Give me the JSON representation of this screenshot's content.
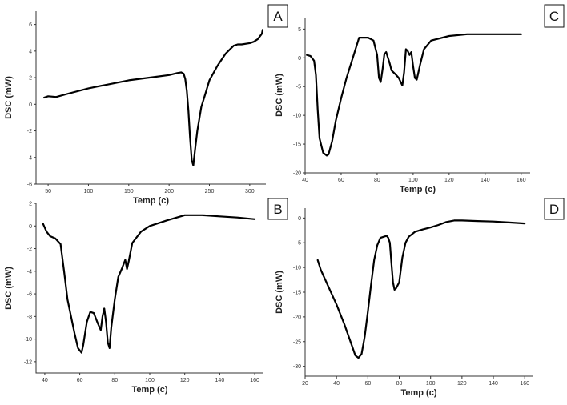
{
  "chart_data": [
    {
      "panel_label": "A",
      "type": "line",
      "xlabel": "Temp (c)",
      "ylabel": "DSC (mW)",
      "xlim": [
        35,
        320
      ],
      "ylim": [
        -6,
        7
      ],
      "xticks": [
        50,
        100,
        150,
        200,
        250,
        300
      ],
      "yticks": [
        -6,
        -4,
        -2,
        0,
        2,
        4,
        6
      ],
      "grid": false,
      "series": [
        {
          "color": "#000000",
          "x": [
            45,
            50,
            60,
            75,
            100,
            125,
            150,
            175,
            200,
            210,
            215,
            218,
            220,
            222,
            224,
            226,
            228,
            230,
            232,
            235,
            240,
            245,
            250,
            260,
            270,
            280,
            285,
            290,
            300,
            305,
            310,
            315,
            316
          ],
          "y": [
            0.5,
            0.6,
            0.55,
            0.8,
            1.2,
            1.5,
            1.8,
            2.0,
            2.2,
            2.35,
            2.4,
            2.3,
            1.9,
            1.0,
            -0.5,
            -2.5,
            -4.2,
            -4.6,
            -3.5,
            -2.0,
            -0.2,
            0.8,
            1.8,
            2.9,
            3.8,
            4.4,
            4.5,
            4.5,
            4.6,
            4.7,
            4.9,
            5.3,
            5.6
          ]
        }
      ]
    },
    {
      "panel_label": "B",
      "type": "line",
      "xlabel": "Temp (c)",
      "ylabel": "DSC (mW)",
      "xlim": [
        35,
        165
      ],
      "ylim": [
        -13,
        2
      ],
      "xticks": [
        40,
        60,
        80,
        100,
        120,
        140,
        160
      ],
      "yticks": [
        -12,
        -10,
        -8,
        -6,
        -4,
        -2,
        0,
        2
      ],
      "grid": false,
      "series": [
        {
          "color": "#000000",
          "x": [
            39,
            41,
            43,
            46,
            49,
            51,
            53,
            55,
            57,
            59,
            61,
            62,
            64,
            66,
            68,
            70,
            72,
            73,
            74,
            75,
            76,
            77,
            78,
            80,
            82,
            84,
            86,
            87,
            88,
            90,
            95,
            100,
            110,
            120,
            130,
            140,
            150,
            160
          ],
          "y": [
            0.2,
            -0.5,
            -0.9,
            -1.1,
            -1.6,
            -4.0,
            -6.5,
            -8.0,
            -9.5,
            -10.8,
            -11.2,
            -10.5,
            -8.5,
            -7.6,
            -7.7,
            -8.5,
            -9.2,
            -8.0,
            -7.3,
            -8.5,
            -10.3,
            -10.8,
            -9.0,
            -6.5,
            -4.5,
            -3.8,
            -3.0,
            -3.8,
            -3.1,
            -1.5,
            -0.5,
            0.0,
            0.5,
            0.95,
            0.95,
            0.85,
            0.75,
            0.6
          ]
        }
      ]
    },
    {
      "panel_label": "C",
      "type": "line",
      "xlabel": "Temp (c)",
      "ylabel": "DSC (mW)",
      "xlim": [
        40,
        165
      ],
      "ylim": [
        -20,
        7
      ],
      "xticks": [
        40,
        60,
        80,
        100,
        120,
        140,
        160
      ],
      "yticks": [
        -20,
        -15,
        -10,
        -5,
        0,
        5
      ],
      "grid": false,
      "series": [
        {
          "color": "#000000",
          "x": [
            41,
            43,
            45,
            46,
            47,
            48,
            50,
            52,
            53,
            55,
            57,
            60,
            63,
            65,
            67,
            70,
            75,
            78,
            80,
            81,
            82,
            83,
            84,
            85,
            87,
            88,
            90,
            92,
            94,
            95,
            96,
            97,
            98,
            99,
            100,
            101,
            102,
            104,
            106,
            110,
            120,
            130,
            140,
            150,
            160
          ],
          "y": [
            0.5,
            0.3,
            -0.5,
            -3.0,
            -9.0,
            -14.0,
            -16.5,
            -17.0,
            -16.8,
            -14.5,
            -11.0,
            -7.0,
            -3.5,
            -1.5,
            0.5,
            3.5,
            3.5,
            3.0,
            0.5,
            -3.5,
            -4.2,
            -2.0,
            0.6,
            1.0,
            -1.0,
            -2.2,
            -2.8,
            -3.5,
            -4.8,
            -2.5,
            1.5,
            1.2,
            0.5,
            1.0,
            -1.5,
            -3.5,
            -3.8,
            -1.0,
            1.5,
            3.0,
            3.8,
            4.1,
            4.1,
            4.1,
            4.1
          ]
        }
      ]
    },
    {
      "panel_label": "D",
      "type": "line",
      "xlabel": "Temp (c)",
      "ylabel": "DSC (mW)",
      "xlim": [
        20,
        165
      ],
      "ylim": [
        -32,
        2
      ],
      "xticks": [
        20,
        40,
        60,
        80,
        100,
        120,
        140,
        160
      ],
      "yticks": [
        -30,
        -25,
        -20,
        -15,
        -10,
        -5,
        0
      ],
      "grid": false,
      "series": [
        {
          "color": "#000000",
          "x": [
            28,
            30,
            35,
            40,
            45,
            50,
            52,
            54,
            56,
            58,
            60,
            62,
            64,
            66,
            68,
            70,
            72,
            73,
            74,
            75,
            76,
            77,
            78,
            80,
            82,
            84,
            86,
            90,
            95,
            100,
            105,
            110,
            115,
            120,
            130,
            140,
            150,
            160
          ],
          "y": [
            -8.5,
            -10.5,
            -14.0,
            -17.5,
            -21.5,
            -26.0,
            -27.8,
            -28.3,
            -27.5,
            -24.0,
            -19.0,
            -13.5,
            -8.5,
            -5.5,
            -4.0,
            -3.8,
            -3.6,
            -4.0,
            -5.0,
            -9.0,
            -13.0,
            -14.5,
            -14.2,
            -13.0,
            -8.0,
            -5.0,
            -3.8,
            -2.8,
            -2.3,
            -1.9,
            -1.4,
            -0.8,
            -0.5,
            -0.5,
            -0.6,
            -0.7,
            -0.9,
            -1.1
          ]
        }
      ]
    }
  ]
}
